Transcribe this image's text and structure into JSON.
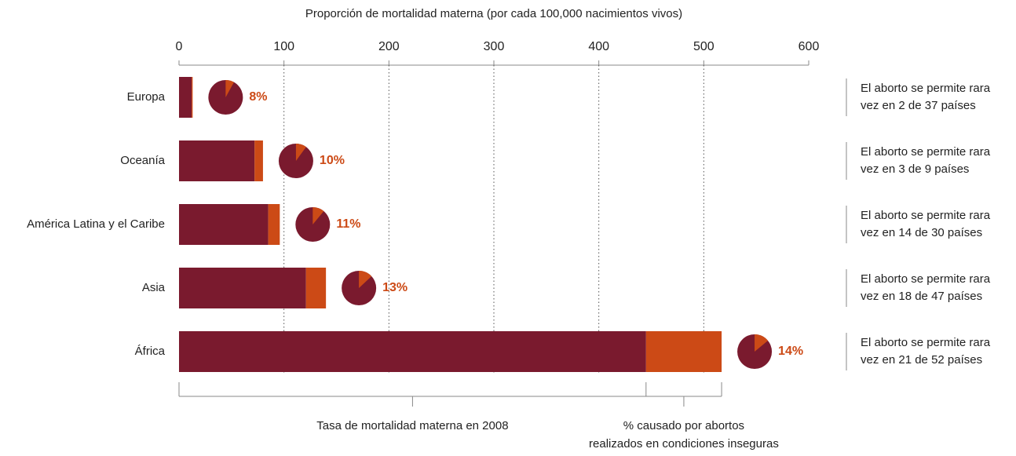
{
  "chart_data": {
    "type": "stacked_bar_horizontal",
    "title": "Proporción de mortalidad materna (por cada 100,000 nacimientos vivos)",
    "categories": [
      "Europa",
      "Oceanía",
      "América Latina y el Caribe",
      "Asia",
      "África"
    ],
    "series": [
      {
        "color": "#7a1a2e",
        "values": [
          12,
          72,
          85,
          121,
          445
        ]
      },
      {
        "color": "#cc4a16",
        "values": [
          1,
          8,
          11,
          19,
          72
        ]
      }
    ],
    "abortion_share": {
      "values": [
        8,
        10,
        11,
        13,
        14
      ],
      "value_labels": [
        "8%",
        "10%",
        "11%",
        "13%",
        "14%"
      ]
    },
    "notes": [
      [
        "El aborto se permite rara",
        "vez en 2 de 37 países"
      ],
      [
        "El aborto se permite rara",
        "vez en 3 de 9 países"
      ],
      [
        "El aborto se permite rara",
        "vez en 14 de 30 países"
      ],
      [
        "El aborto se permite rara",
        "vez en 18 de 47 países"
      ],
      [
        "El aborto se permite rara",
        "vez en 21 de 52 países"
      ]
    ],
    "bottom_labels": [
      [
        "Tasa de mortalidad materna en 2008"
      ],
      [
        "% causado por abortos",
        "realizados en condiciones inseguras"
      ]
    ],
    "xlim": [
      0,
      600
    ],
    "xticks": [
      0,
      100,
      200,
      300,
      400,
      500,
      600
    ],
    "grid": true
  }
}
